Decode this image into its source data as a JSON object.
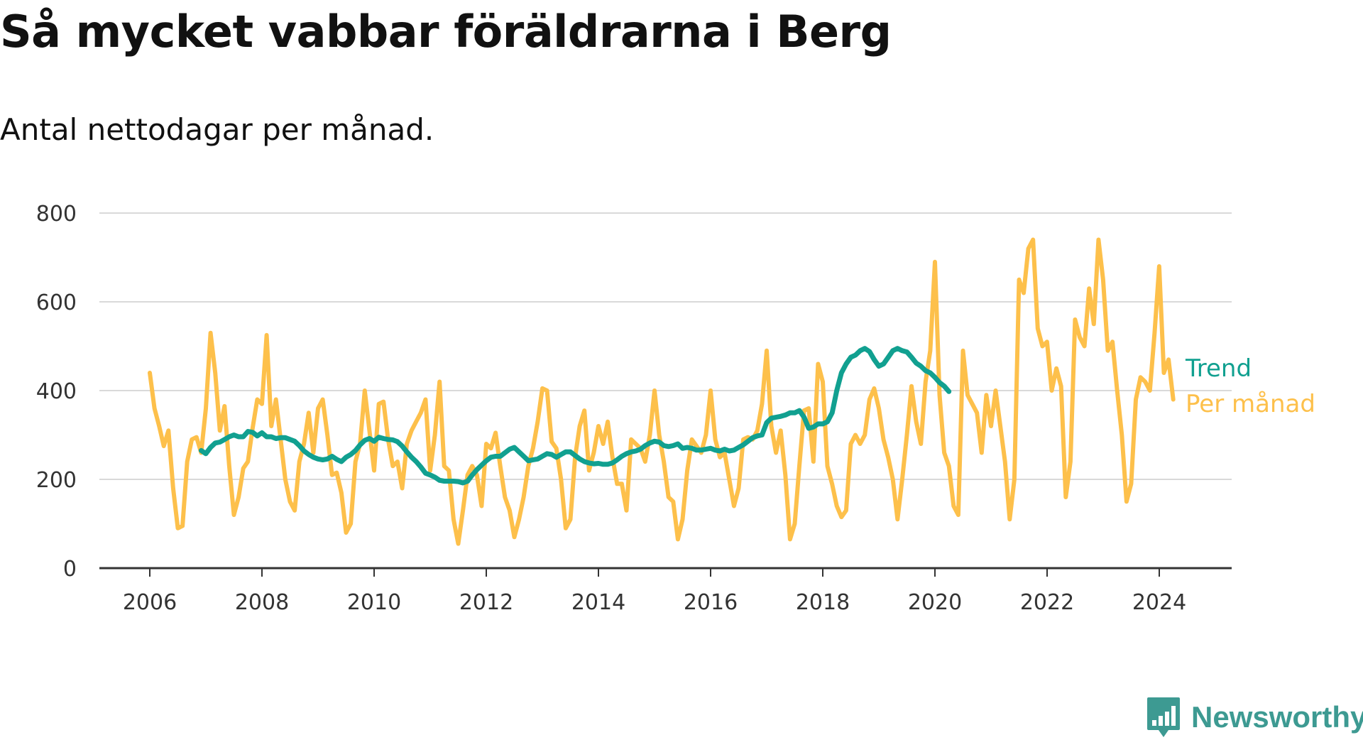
{
  "chart_data": {
    "type": "line",
    "title": "Så mycket vabbar föräldrarna i Berg",
    "subtitle": "Antal nettodagar per månad.",
    "xlabel": "",
    "ylabel": "",
    "ylim": [
      0,
      800
    ],
    "yticks": [
      0,
      200,
      400,
      600,
      800
    ],
    "xticks": [
      2006,
      2008,
      2010,
      2012,
      2014,
      2016,
      2018,
      2020,
      2022,
      2024
    ],
    "xlim": [
      2006,
      2026
    ],
    "grid": true,
    "series": [
      {
        "name": "Per månad",
        "color": "#fdc04b",
        "x_start": 2006.0,
        "step": 0.08333,
        "values": [
          440,
          360,
          320,
          275,
          310,
          180,
          90,
          95,
          240,
          290,
          295,
          260,
          360,
          530,
          440,
          310,
          365,
          230,
          120,
          160,
          225,
          240,
          315,
          380,
          370,
          525,
          320,
          380,
          290,
          200,
          150,
          130,
          240,
          280,
          350,
          260,
          360,
          380,
          300,
          210,
          215,
          170,
          80,
          100,
          240,
          280,
          400,
          310,
          220,
          370,
          375,
          290,
          230,
          240,
          180,
          280,
          310,
          330,
          350,
          380,
          220,
          300,
          420,
          230,
          220,
          110,
          55,
          130,
          210,
          230,
          210,
          140,
          280,
          270,
          305,
          230,
          160,
          130,
          70,
          110,
          160,
          230,
          270,
          330,
          405,
          400,
          285,
          270,
          200,
          90,
          110,
          250,
          320,
          355,
          220,
          260,
          320,
          280,
          330,
          250,
          190,
          190,
          130,
          290,
          280,
          270,
          240,
          300,
          400,
          300,
          240,
          160,
          150,
          65,
          110,
          220,
          290,
          275,
          260,
          300,
          400,
          290,
          250,
          260,
          200,
          140,
          180,
          290,
          295,
          290,
          310,
          370,
          490,
          320,
          260,
          310,
          210,
          65,
          100,
          230,
          355,
          360,
          240,
          460,
          420,
          230,
          190,
          140,
          115,
          130,
          280,
          300,
          280,
          300,
          380,
          405,
          360,
          290,
          250,
          200,
          110,
          200,
          300,
          410,
          330,
          280,
          420,
          490,
          690,
          390,
          260,
          230,
          140,
          120,
          490,
          390,
          370,
          350,
          260,
          390,
          320,
          400,
          320,
          240,
          110,
          200,
          650,
          620,
          720,
          740,
          540,
          500,
          510,
          400,
          450,
          410,
          160,
          240,
          560,
          520,
          500,
          630,
          550,
          740,
          650,
          490,
          510,
          400,
          300,
          150,
          190,
          380,
          430,
          420,
          400,
          530,
          680,
          440,
          470,
          380
        ]
      },
      {
        "name": "Trend",
        "color": "#11a090",
        "x_start": 2006.917,
        "step": 0.08333,
        "values": [
          265,
          258,
          272,
          282,
          284,
          290,
          296,
          300,
          296,
          296,
          308,
          306,
          298,
          305,
          296,
          296,
          292,
          294,
          294,
          290,
          286,
          276,
          264,
          256,
          250,
          246,
          244,
          246,
          252,
          245,
          240,
          250,
          256,
          265,
          278,
          288,
          292,
          286,
          295,
          292,
          290,
          289,
          285,
          275,
          262,
          250,
          240,
          228,
          214,
          210,
          205,
          198,
          196,
          196,
          196,
          195,
          192,
          196,
          210,
          222,
          232,
          242,
          250,
          252,
          252,
          260,
          268,
          272,
          262,
          252,
          242,
          244,
          246,
          252,
          258,
          256,
          250,
          256,
          262,
          262,
          254,
          246,
          240,
          237,
          235,
          236,
          234,
          234,
          237,
          244,
          252,
          258,
          262,
          264,
          268,
          276,
          282,
          286,
          284,
          276,
          274,
          276,
          280,
          270,
          272,
          270,
          266,
          266,
          268,
          270,
          266,
          264,
          268,
          264,
          266,
          272,
          278,
          286,
          294,
          298,
          300,
          328,
          338,
          340,
          342,
          345,
          350,
          350,
          355,
          340,
          315,
          318,
          325,
          325,
          330,
          350,
          400,
          440,
          460,
          475,
          480,
          490,
          495,
          488,
          470,
          455,
          460,
          475,
          490,
          495,
          490,
          487,
          475,
          462,
          455,
          445,
          440,
          430,
          418,
          410,
          398
        ]
      }
    ]
  },
  "legend": {
    "trend_label": "Trend",
    "per_month_label": "Per månad"
  },
  "brand": {
    "name": "Newsworthy",
    "logo_icon": "bar-chart-bubble-icon",
    "color": "#3d9a92"
  },
  "colors": {
    "grid": "#d9d9d9",
    "axis": "#333333"
  }
}
